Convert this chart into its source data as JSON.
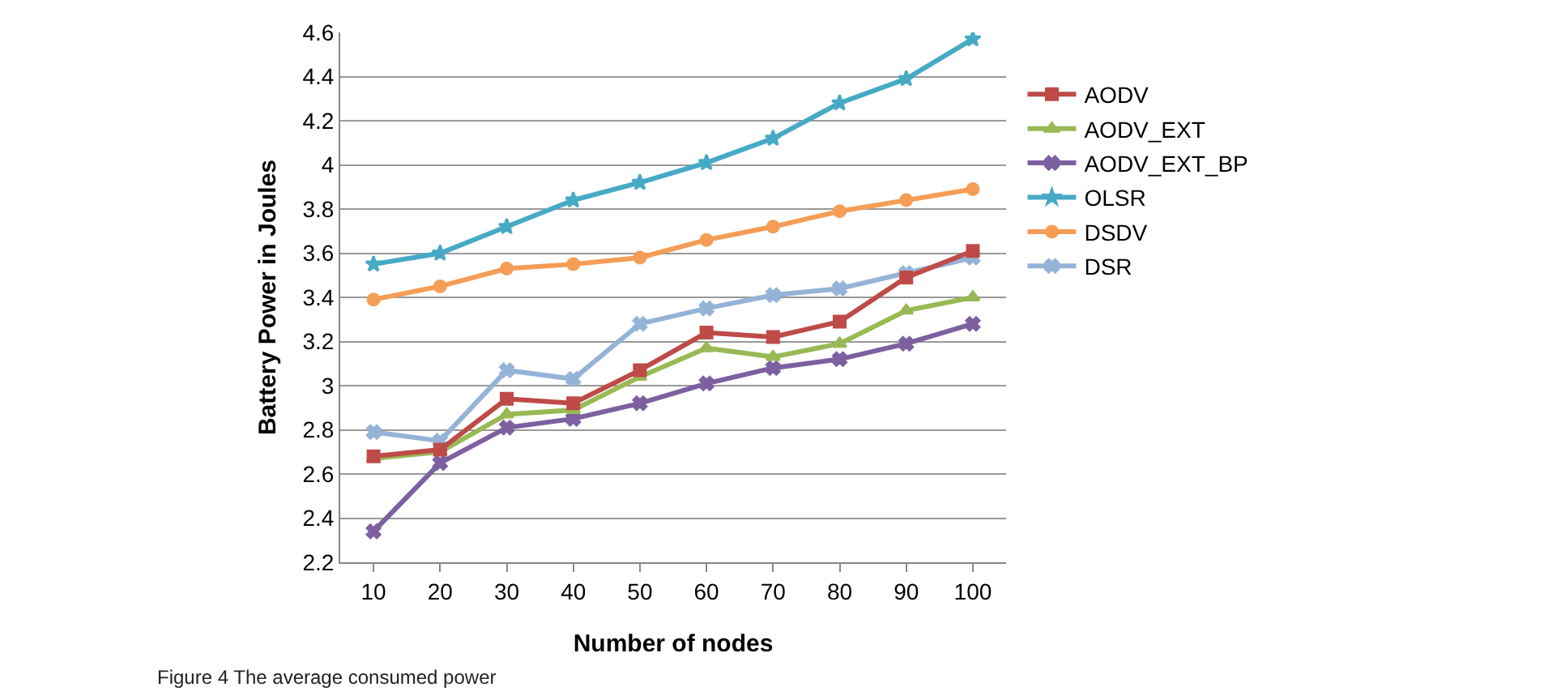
{
  "chart_data": {
    "type": "line",
    "xlabel": "Number of nodes",
    "ylabel": "Battery Power in Joules",
    "categories": [
      "10",
      "20",
      "30",
      "40",
      "50",
      "60",
      "70",
      "80",
      "90",
      "100"
    ],
    "ylim": [
      2.2,
      4.6
    ],
    "yticks": [
      2.2,
      2.4,
      2.6,
      2.8,
      3,
      3.2,
      3.4,
      3.6,
      3.8,
      4,
      4.2,
      4.4,
      4.6
    ],
    "grid": "y",
    "legend": "right",
    "series": [
      {
        "name": "AODV",
        "color": "#be4b48",
        "marker": "square",
        "values": [
          2.68,
          2.71,
          2.94,
          2.92,
          3.07,
          3.24,
          3.22,
          3.29,
          3.49,
          3.61
        ]
      },
      {
        "name": "AODV_EXT",
        "color": "#98b954",
        "marker": "triangle",
        "values": [
          2.67,
          2.7,
          2.87,
          2.89,
          3.04,
          3.17,
          3.13,
          3.19,
          3.34,
          3.4
        ]
      },
      {
        "name": "AODV_EXT_BP",
        "color": "#7d60a0",
        "marker": "cross",
        "values": [
          2.34,
          2.65,
          2.81,
          2.85,
          2.92,
          3.01,
          3.08,
          3.12,
          3.19,
          3.28
        ]
      },
      {
        "name": "OLSR",
        "color": "#46aac5",
        "marker": "star",
        "values": [
          3.55,
          3.6,
          3.72,
          3.84,
          3.92,
          4.01,
          4.12,
          4.28,
          4.39,
          4.57
        ]
      },
      {
        "name": "DSDV",
        "color": "#f59d56",
        "marker": "circle",
        "values": [
          3.39,
          3.45,
          3.53,
          3.55,
          3.58,
          3.66,
          3.72,
          3.79,
          3.84,
          3.89
        ]
      },
      {
        "name": "DSR",
        "color": "#95b3d7",
        "marker": "cross",
        "values": [
          2.79,
          2.75,
          3.07,
          3.03,
          3.28,
          3.35,
          3.41,
          3.44,
          3.51,
          3.58
        ]
      }
    ],
    "annotations": [
      "Figure 4 The average consumed power"
    ]
  }
}
